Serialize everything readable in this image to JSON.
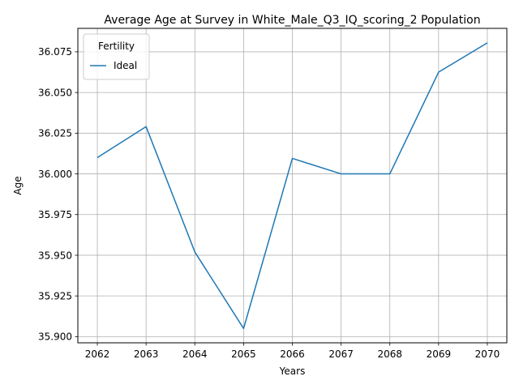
{
  "chart_data": {
    "type": "line",
    "title": "Average Age at Survey in White_Male_Q3_IQ_scoring_2 Population",
    "xlabel": "Years",
    "ylabel": "Age",
    "x": [
      2062,
      2063,
      2064,
      2065,
      2066,
      2067,
      2068,
      2069,
      2070
    ],
    "x_tick_labels": [
      "2062",
      "2063",
      "2064",
      "2065",
      "2066",
      "2067",
      "2068",
      "2069",
      "2070"
    ],
    "y_ticks": [
      35.9,
      35.925,
      35.95,
      35.975,
      36.0,
      36.025,
      36.05,
      36.075
    ],
    "y_tick_labels": [
      "35.900",
      "35.925",
      "35.950",
      "35.975",
      "36.000",
      "36.025",
      "36.050",
      "36.075"
    ],
    "xlim": [
      2061.6,
      2070.4
    ],
    "ylim": [
      35.8962,
      36.0894
    ],
    "grid": true,
    "legend": {
      "title": "Fertility",
      "placement": "upper-left"
    },
    "series": [
      {
        "name": "Ideal",
        "color": "#1f77b4",
        "values": [
          36.01,
          36.029,
          35.952,
          35.905,
          36.0095,
          36.0,
          36.0,
          36.0625,
          36.0805
        ]
      }
    ]
  }
}
